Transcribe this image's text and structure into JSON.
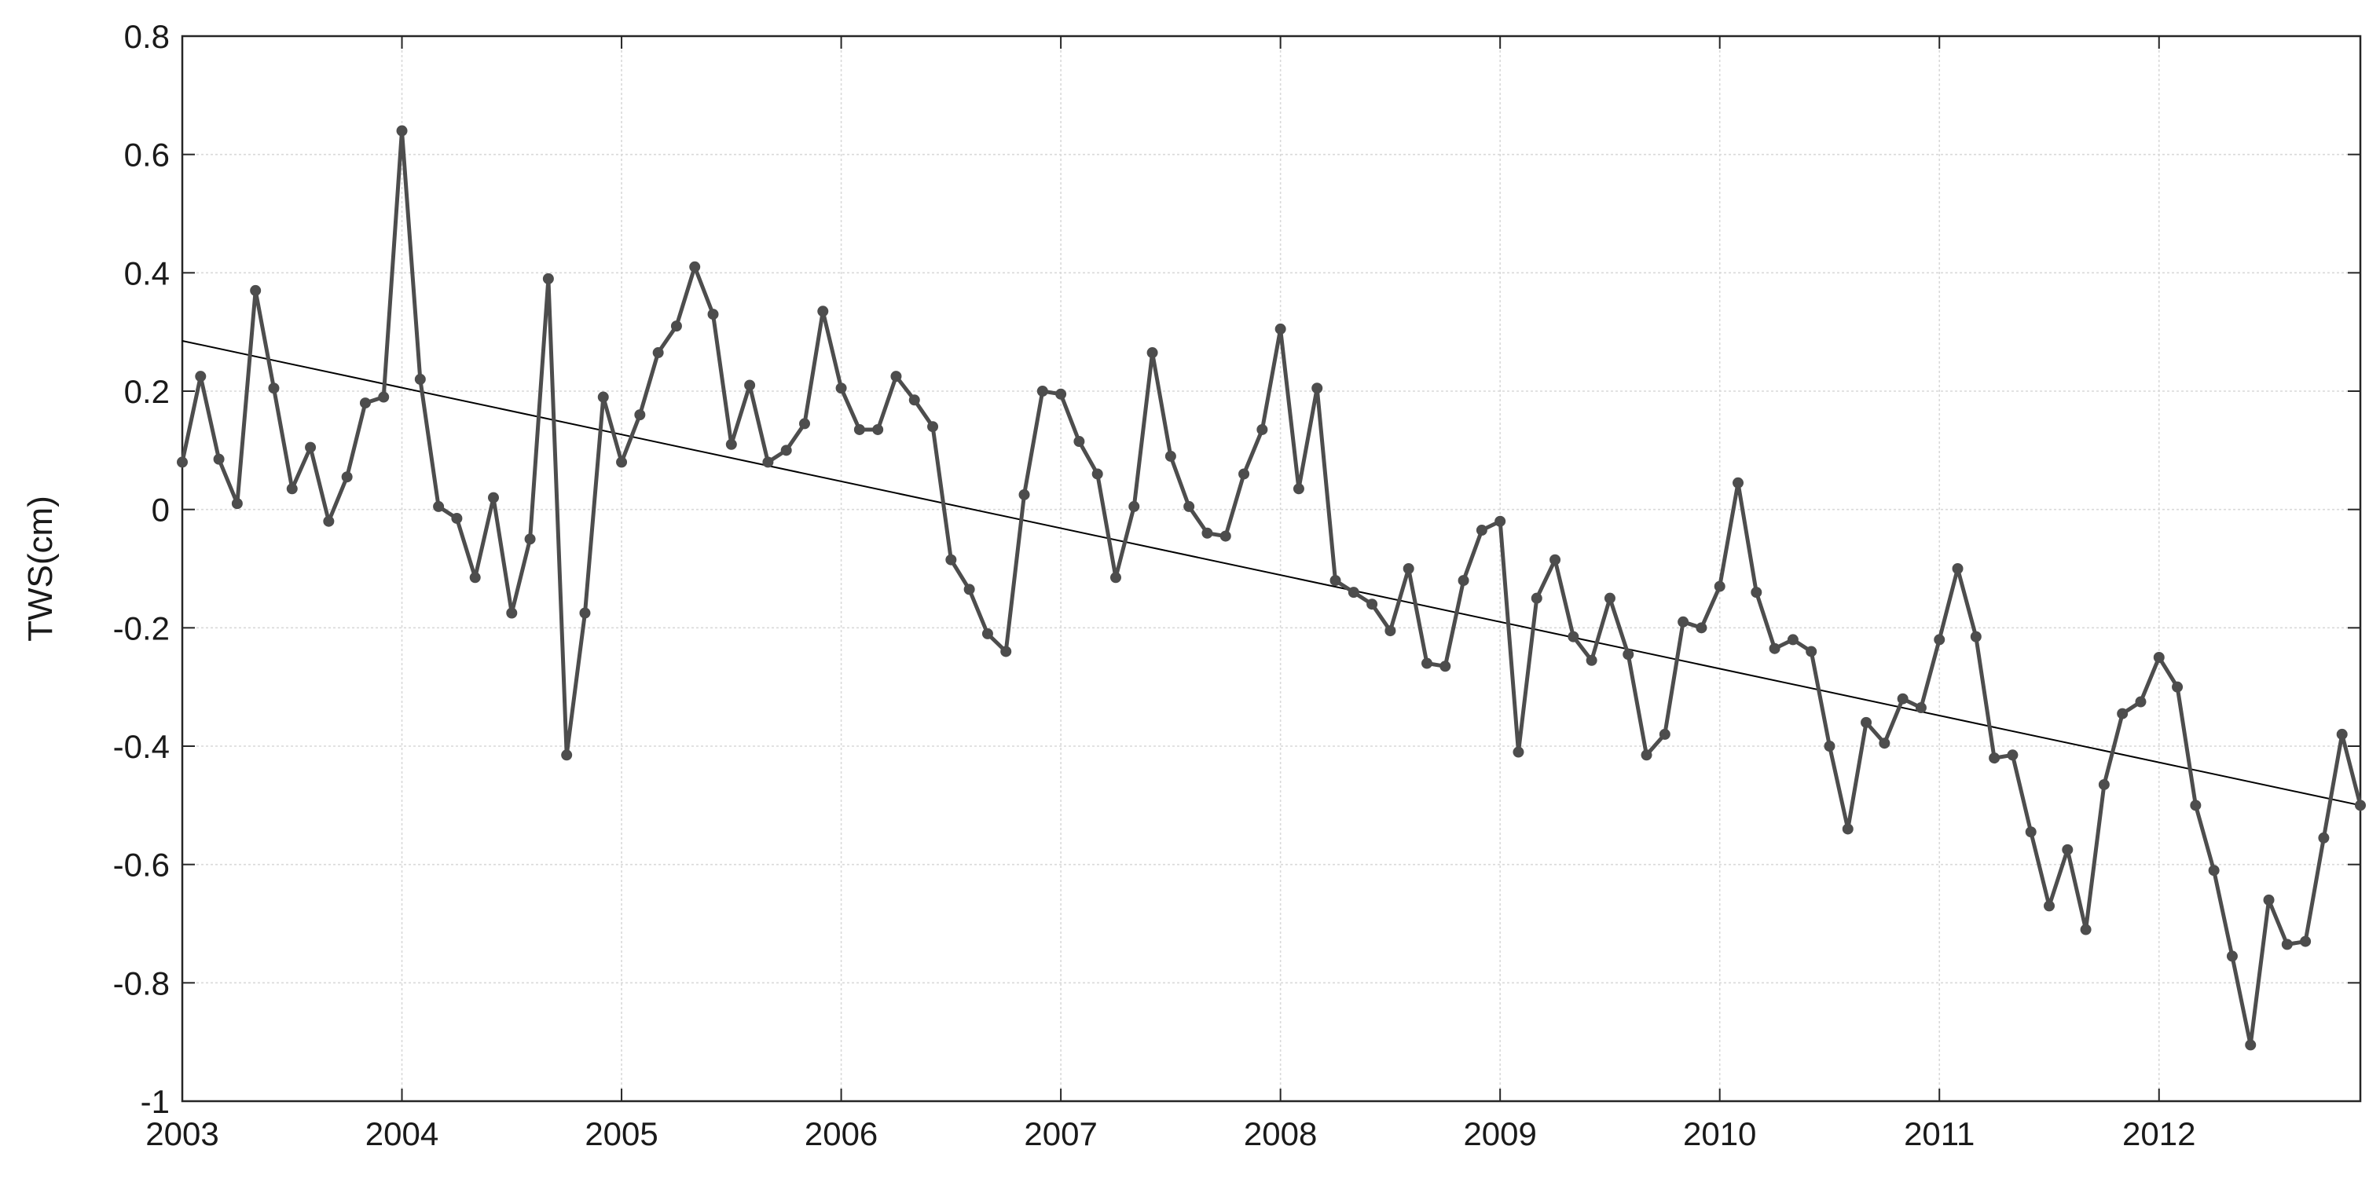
{
  "chart_data": {
    "type": "line",
    "title": "",
    "xlabel": "",
    "ylabel": "TWS(cm)",
    "xlim": [
      "2003-01",
      "2012-12"
    ],
    "ylim": [
      -1,
      0.8
    ],
    "grid": true,
    "x_ticks": [
      "2003",
      "2004",
      "2005",
      "2006",
      "2007",
      "2008",
      "2009",
      "2010",
      "2011",
      "2012"
    ],
    "y_ticks": [
      "0.8",
      "0.6",
      "0.4",
      "0.2",
      "0",
      "-0.2",
      "-0.4",
      "-0.6",
      "-0.8",
      "-1"
    ],
    "colors": {
      "series": "#4d4d4d",
      "trend": "#000000",
      "grid": "#d9d9d9",
      "axis": "#262626"
    },
    "series": [
      {
        "style": "line-with-markers",
        "x": [
          "2003-01",
          "2003-02",
          "2003-03",
          "2003-04",
          "2003-05",
          "2003-06",
          "2003-07",
          "2003-08",
          "2003-09",
          "2003-10",
          "2003-11",
          "2003-12",
          "2004-01",
          "2004-02",
          "2004-03",
          "2004-04",
          "2004-05",
          "2004-06",
          "2004-07",
          "2004-08",
          "2004-09",
          "2004-10",
          "2004-11",
          "2004-12",
          "2005-01",
          "2005-02",
          "2005-03",
          "2005-04",
          "2005-05",
          "2005-06",
          "2005-07",
          "2005-08",
          "2005-09",
          "2005-10",
          "2005-11",
          "2005-12",
          "2006-01",
          "2006-02",
          "2006-03",
          "2006-04",
          "2006-05",
          "2006-06",
          "2006-07",
          "2006-08",
          "2006-09",
          "2006-10",
          "2006-11",
          "2006-12",
          "2007-01",
          "2007-02",
          "2007-03",
          "2007-04",
          "2007-05",
          "2007-06",
          "2007-07",
          "2007-08",
          "2007-09",
          "2007-10",
          "2007-11",
          "2007-12",
          "2008-01",
          "2008-02",
          "2008-03",
          "2008-04",
          "2008-05",
          "2008-06",
          "2008-07",
          "2008-08",
          "2008-09",
          "2008-10",
          "2008-11",
          "2008-12",
          "2009-01",
          "2009-02",
          "2009-03",
          "2009-04",
          "2009-05",
          "2009-06",
          "2009-07",
          "2009-08",
          "2009-09",
          "2009-10",
          "2009-11",
          "2009-12",
          "2010-01",
          "2010-02",
          "2010-03",
          "2010-04",
          "2010-05",
          "2010-06",
          "2010-07",
          "2010-08",
          "2010-09",
          "2010-10",
          "2010-11",
          "2010-12",
          "2011-01",
          "2011-02",
          "2011-03",
          "2011-04",
          "2011-05",
          "2011-06",
          "2011-07",
          "2011-08",
          "2011-09",
          "2011-10",
          "2011-11",
          "2011-12",
          "2012-01",
          "2012-02",
          "2012-03",
          "2012-04",
          "2012-05",
          "2012-06",
          "2012-07",
          "2012-08",
          "2012-09",
          "2012-10",
          "2012-11",
          "2012-12"
        ],
        "values": [
          0.08,
          0.225,
          0.085,
          0.01,
          0.37,
          0.205,
          0.035,
          0.105,
          -0.02,
          0.055,
          0.18,
          0.19,
          0.64,
          0.22,
          0.005,
          -0.015,
          -0.115,
          0.02,
          -0.175,
          -0.05,
          0.39,
          -0.415,
          -0.175,
          0.19,
          0.08,
          0.16,
          0.265,
          0.31,
          0.41,
          0.33,
          0.11,
          0.21,
          0.08,
          0.1,
          0.145,
          0.335,
          0.205,
          0.135,
          0.135,
          0.225,
          0.185,
          0.14,
          -0.085,
          -0.135,
          -0.21,
          -0.24,
          0.025,
          0.2,
          0.195,
          0.115,
          0.06,
          -0.115,
          0.005,
          0.265,
          0.09,
          0.005,
          -0.04,
          -0.045,
          0.06,
          0.135,
          0.305,
          0.035,
          0.205,
          -0.12,
          -0.14,
          -0.16,
          -0.205,
          -0.1,
          -0.26,
          -0.265,
          -0.12,
          -0.035,
          -0.02,
          -0.41,
          -0.15,
          -0.085,
          -0.215,
          -0.255,
          -0.15,
          -0.245,
          -0.415,
          -0.38,
          -0.19,
          -0.2,
          -0.13,
          0.045,
          -0.14,
          -0.235,
          -0.22,
          -0.24,
          -0.4,
          -0.54,
          -0.36,
          -0.395,
          -0.32,
          -0.335,
          -0.22,
          -0.1,
          -0.215,
          -0.42,
          -0.415,
          -0.545,
          -0.67,
          -0.575,
          -0.71,
          -0.465,
          -0.345,
          -0.325,
          -0.25,
          -0.3,
          -0.5,
          -0.61,
          -0.755,
          -0.905,
          -0.66,
          -0.735,
          -0.73,
          -0.555,
          -0.38,
          -0.5
        ]
      },
      {
        "style": "trend-line",
        "x": [
          "2003-01",
          "2012-12"
        ],
        "values": [
          0.285,
          -0.5
        ]
      }
    ]
  }
}
